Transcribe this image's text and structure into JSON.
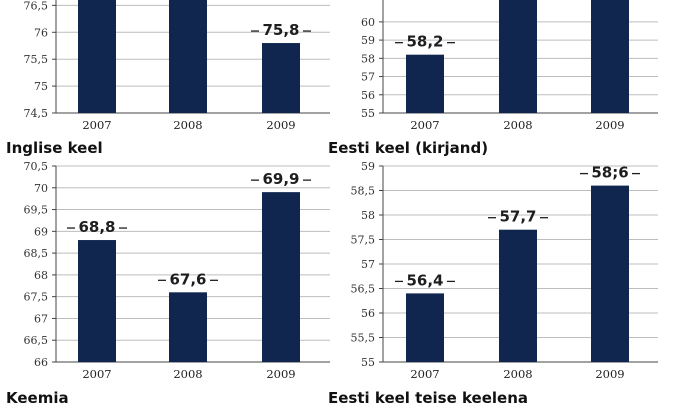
{
  "colors": {
    "bar": "#10264f",
    "grid": "#bdbdbd",
    "axis": "#444444",
    "text": "#1e1e1e"
  },
  "chart_data": [
    {
      "type": "bar",
      "title": "",
      "categories": [
        "2007",
        "2008",
        "2009"
      ],
      "values": [
        76.6,
        76.6,
        75.8
      ],
      "labels": [
        "",
        "",
        "75,8"
      ],
      "yticks": [
        "74,5",
        "75",
        "75,5",
        "76",
        "76,5"
      ],
      "ylim": [
        74.5,
        76.6
      ],
      "bottom_caption": "Inglise keel",
      "grid": true
    },
    {
      "type": "bar",
      "title": "",
      "categories": [
        "2007",
        "2008",
        "2009"
      ],
      "values": [
        58.2,
        61.2,
        61.2
      ],
      "labels": [
        "58,2",
        "",
        ""
      ],
      "yticks": [
        "55",
        "56",
        "57",
        "58",
        "59",
        "60"
      ],
      "ylim": [
        55,
        61.2
      ],
      "bottom_caption": "Eesti keel (kirjand)",
      "grid": true
    },
    {
      "type": "bar",
      "title": "",
      "categories": [
        "2007",
        "2008",
        "2009"
      ],
      "values": [
        68.8,
        67.6,
        69.9
      ],
      "labels": [
        "68,8",
        "67,6",
        "69,9"
      ],
      "yticks": [
        "66",
        "66,5",
        "67",
        "67,5",
        "68",
        "68,5",
        "69",
        "69,5",
        "70",
        "70,5"
      ],
      "ylim": [
        66,
        70.5
      ],
      "bottom_caption": "Keemia",
      "grid": true
    },
    {
      "type": "bar",
      "title": "",
      "categories": [
        "2007",
        "2008",
        "2009"
      ],
      "values": [
        56.4,
        57.7,
        58.6
      ],
      "labels": [
        "56,4",
        "57,7",
        "58;6"
      ],
      "yticks": [
        "55",
        "55,5",
        "56",
        "56,5",
        "57",
        "57,5",
        "58",
        "58,5",
        "59"
      ],
      "ylim": [
        55,
        59
      ],
      "bottom_caption": "Eesti keel teise keelena",
      "grid": true
    }
  ]
}
